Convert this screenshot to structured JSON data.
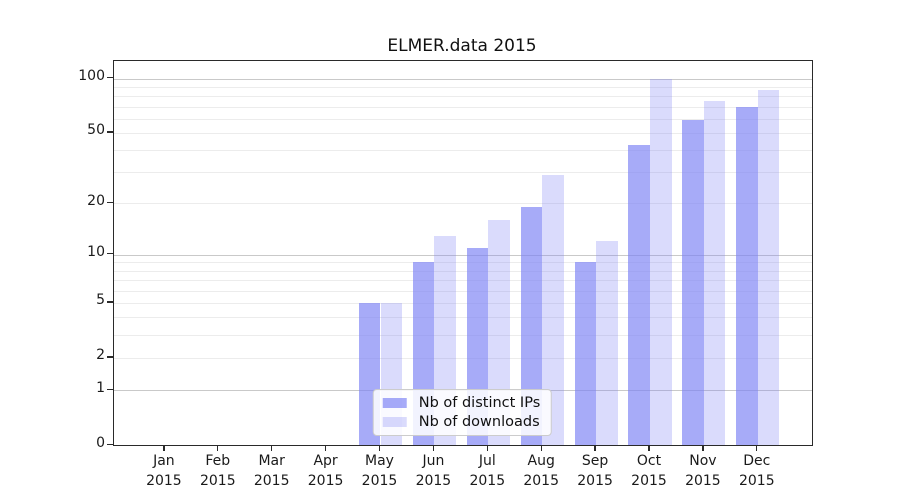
{
  "chart_data": {
    "type": "bar",
    "title": "ELMER.data 2015",
    "categories": [
      "Jan",
      "Feb",
      "Mar",
      "Apr",
      "May",
      "Jun",
      "Jul",
      "Aug",
      "Sep",
      "Oct",
      "Nov",
      "Dec"
    ],
    "category_year": "2015",
    "series": [
      {
        "name": "Nb of distinct IPs",
        "color": "rgba(122,127,244,0.66)",
        "values": [
          0,
          0,
          0,
          0,
          5,
          9,
          11,
          19,
          9,
          43,
          59,
          70
        ]
      },
      {
        "name": "Nb of downloads",
        "color": "rgba(122,127,244,0.28)",
        "values": [
          0,
          0,
          0,
          0,
          5,
          13,
          16,
          29,
          12,
          100,
          75,
          86
        ]
      }
    ],
    "yscale": "log1p",
    "ylim": [
      0,
      125
    ],
    "yticks": [
      0,
      1,
      2,
      5,
      10,
      20,
      50,
      100
    ],
    "ytick_labels": [
      "0",
      "1",
      "2",
      "5",
      "10",
      "20",
      "50",
      "100"
    ],
    "major_gridlines": [
      1,
      10,
      100
    ],
    "minor_gridlines": [
      2,
      3,
      4,
      5,
      6,
      7,
      8,
      9,
      20,
      30,
      40,
      50,
      60,
      70,
      80,
      90
    ],
    "grid": true,
    "legend": {
      "position": "lower center",
      "labels": [
        "Nb of distinct IPs",
        "Nb of downloads"
      ]
    }
  }
}
